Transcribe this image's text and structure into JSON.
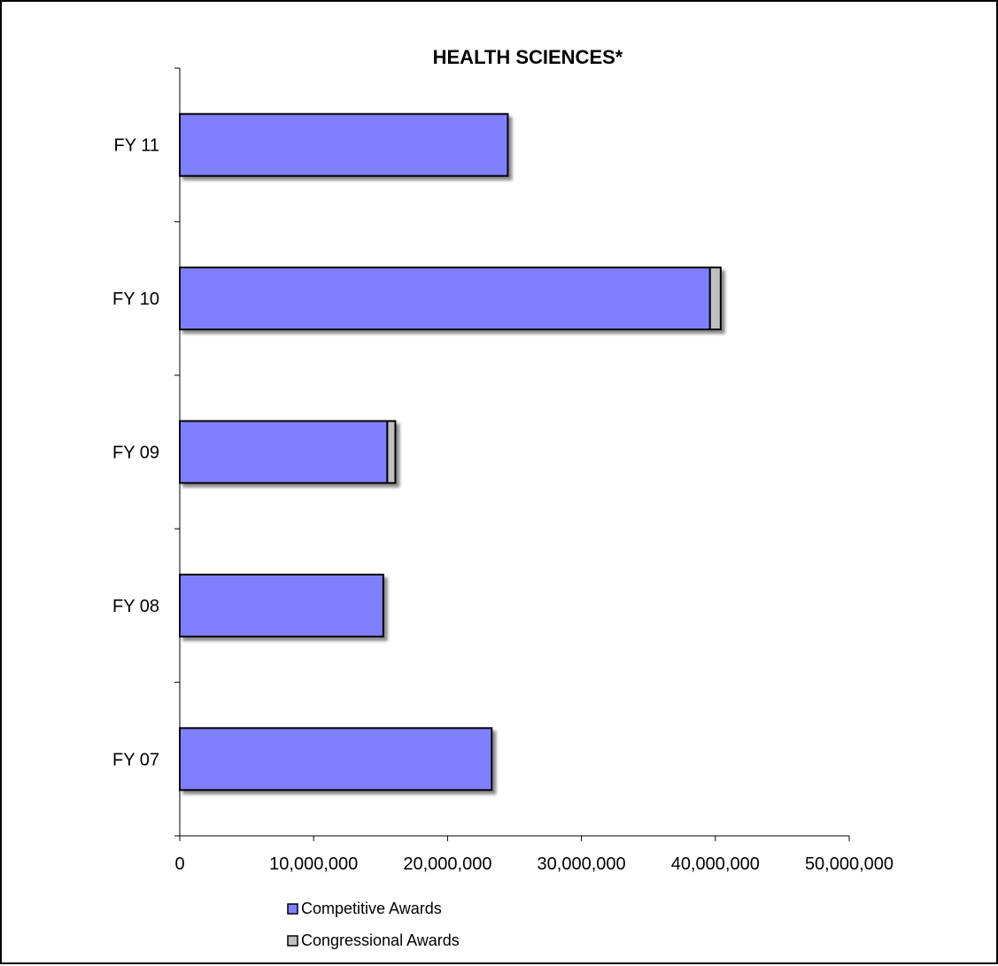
{
  "chart_data": {
    "type": "bar",
    "orientation": "horizontal",
    "stacked": true,
    "title": "HEALTH SCIENCES*",
    "xlabel": "",
    "ylabel": "",
    "categories": [
      "FY 07",
      "FY 08",
      "FY 09",
      "FY 10",
      "FY 11"
    ],
    "series": [
      {
        "name": "Competitive Awards",
        "color": "#8080ff",
        "values": [
          23300000,
          15200000,
          15500000,
          39600000,
          24500000
        ]
      },
      {
        "name": "Congressional Awards",
        "color": "#c0c0c0",
        "values": [
          0,
          0,
          600000,
          800000,
          0
        ]
      }
    ],
    "xlim": [
      0,
      50000000
    ],
    "xticks": [
      0,
      10000000,
      20000000,
      30000000,
      40000000,
      50000000
    ],
    "xtick_labels": [
      "0",
      "10,000,000",
      "20,000,000",
      "30,000,000",
      "40,000,000",
      "50,000,000"
    ],
    "grid": false,
    "legend": "bottom"
  }
}
